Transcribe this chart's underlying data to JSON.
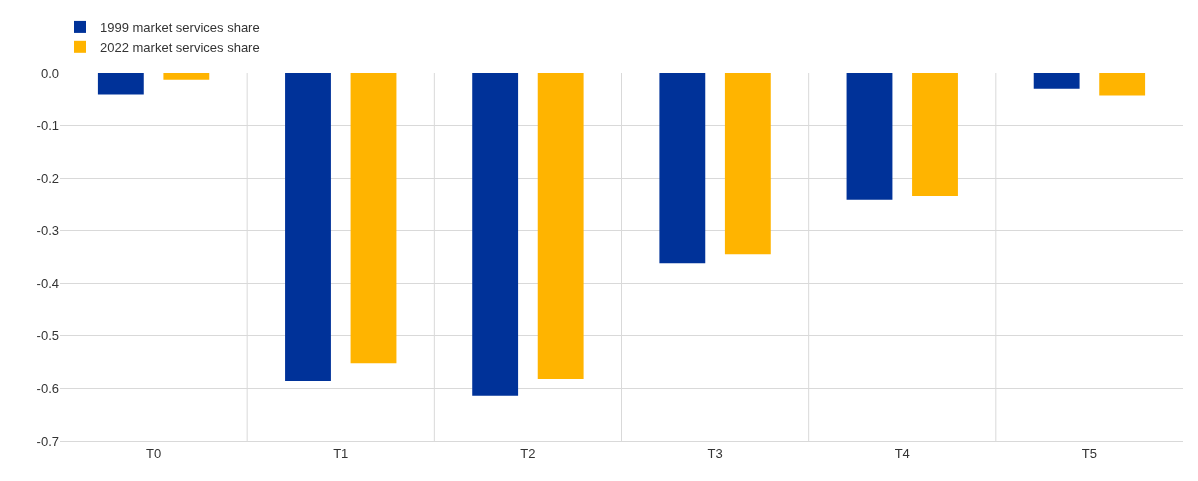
{
  "chart_data": {
    "type": "bar",
    "categories": [
      "T0",
      "T1",
      "T2",
      "T3",
      "T4",
      "T5"
    ],
    "series": [
      {
        "name": "1999 market services share",
        "color": "#003299",
        "values": [
          -0.041,
          -0.586,
          -0.614,
          -0.362,
          -0.241,
          -0.03
        ]
      },
      {
        "name": "2022 market services share",
        "color": "#ffb400",
        "values": [
          -0.013,
          -0.552,
          -0.582,
          -0.345,
          -0.234,
          -0.043
        ]
      }
    ],
    "ylim": [
      -0.7,
      0.0
    ],
    "yticks": [
      {
        "value": -0.7,
        "label": "-0.7"
      },
      {
        "value": -0.6,
        "label": "-0.6"
      },
      {
        "value": -0.5,
        "label": "-0.5"
      },
      {
        "value": -0.4,
        "label": "-0.4"
      },
      {
        "value": -0.3,
        "label": "-0.3"
      },
      {
        "value": -0.2,
        "label": "-0.2"
      },
      {
        "value": -0.1,
        "label": "-0.1"
      },
      {
        "value": 0.0,
        "label": "0.0"
      }
    ],
    "grid": true,
    "legend": "top left"
  }
}
